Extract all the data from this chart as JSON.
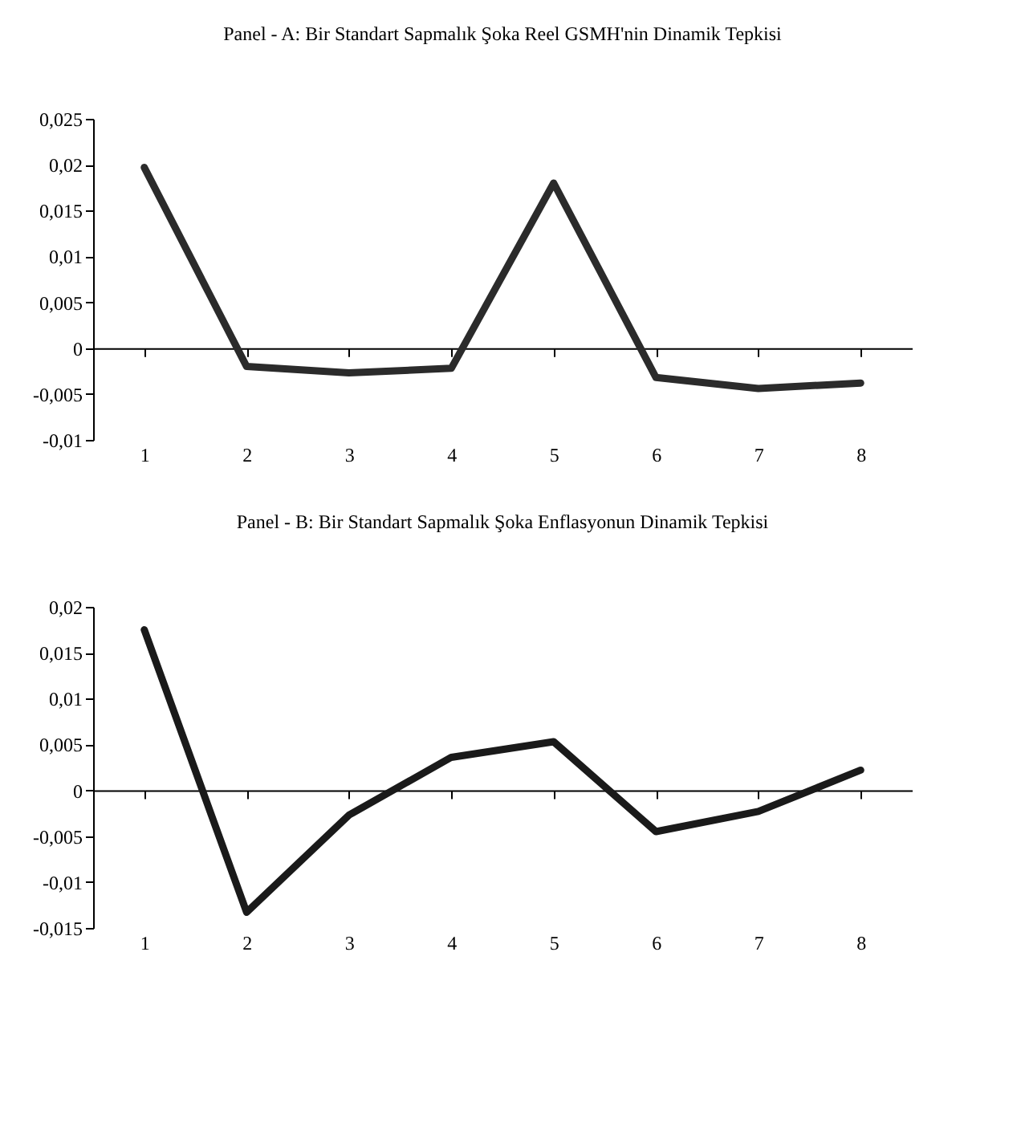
{
  "chart_data": [
    {
      "type": "line",
      "title": "Panel - A: Bir Standart Sapmalık Şoka Reel GSMH'nin Dinamik Tepkisi",
      "categories": [
        "1",
        "2",
        "3",
        "4",
        "5",
        "6",
        "7",
        "8"
      ],
      "series": [
        {
          "color": "#2b2b2b",
          "values": [
            0.0197,
            -0.002,
            -0.0027,
            -0.0022,
            0.018,
            -0.0032,
            -0.0044,
            -0.0038
          ]
        }
      ],
      "ylim": [
        -0.01,
        0.025
      ],
      "yticks": [
        {
          "value": -0.01,
          "label": "-0,01"
        },
        {
          "value": -0.005,
          "label": "-0,005"
        },
        0,
        {
          "value": 0.005,
          "label": "0,005"
        },
        {
          "value": 0.01,
          "label": "0,01"
        },
        {
          "value": 0.015,
          "label": "0,015"
        },
        {
          "value": 0.02,
          "label": "0,02"
        },
        {
          "value": 0.025,
          "label": "0,025"
        }
      ],
      "marker": "none",
      "line_style": "solid"
    },
    {
      "type": "line",
      "title": "Panel - B: Bir Standart Sapmalık Şoka Enflasyonun Dinamik Tepkisi",
      "categories": [
        "1",
        "2",
        "3",
        "4",
        "5",
        "6",
        "7",
        "8"
      ],
      "series": [
        {
          "color": "#1a1a1a",
          "values": [
            0.0175,
            -0.0133,
            -0.0027,
            0.0036,
            0.0053,
            -0.0045,
            -0.0023,
            0.0022
          ]
        }
      ],
      "ylim": [
        -0.015,
        0.02
      ],
      "yticks": [
        {
          "value": -0.015,
          "label": "-0,015"
        },
        {
          "value": -0.01,
          "label": "-0,01"
        },
        {
          "value": -0.005,
          "label": "-0,005"
        },
        0,
        {
          "value": 0.005,
          "label": "0,005"
        },
        {
          "value": 0.01,
          "label": "0,01"
        },
        {
          "value": 0.015,
          "label": "0,015"
        },
        {
          "value": 0.02,
          "label": "0,02"
        }
      ],
      "marker": "none",
      "line_style": "solid"
    }
  ]
}
